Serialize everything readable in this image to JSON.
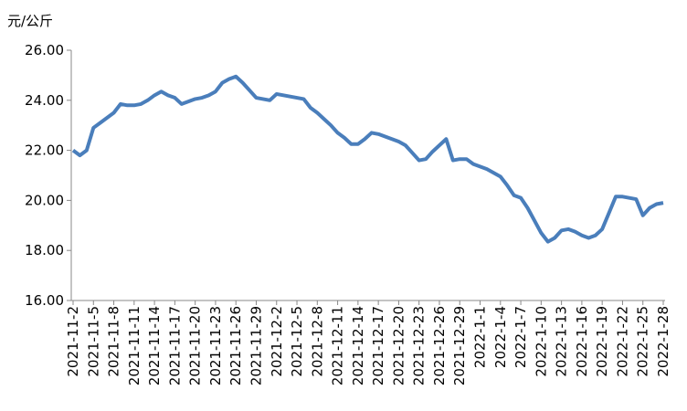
{
  "chart_data": {
    "type": "line",
    "y_label": "元/公斤",
    "categories": [
      "2021-11-2",
      null,
      null,
      "2021-11-5",
      null,
      null,
      "2021-11-8",
      null,
      null,
      "2021-11-11",
      null,
      null,
      "2021-11-14",
      null,
      null,
      "2021-11-17",
      null,
      null,
      "2021-11-20",
      null,
      null,
      "2021-11-23",
      null,
      null,
      "2021-11-26",
      null,
      null,
      "2021-11-29",
      null,
      null,
      "2021-12-2",
      null,
      null,
      "2021-12-5",
      null,
      null,
      "2021-12-8",
      null,
      null,
      "2021-12-11",
      null,
      null,
      "2021-12-14",
      null,
      null,
      "2021-12-17",
      null,
      null,
      "2021-12-20",
      null,
      null,
      "2021-12-23",
      null,
      null,
      "2021-12-26",
      null,
      null,
      "2021-12-29",
      null,
      null,
      "2022-1-1",
      null,
      null,
      "2022-1-4",
      null,
      null,
      "2022-1-7",
      null,
      null,
      "2022-1-10",
      null,
      null,
      "2022-1-13",
      null,
      null,
      "2022-1-16",
      null,
      null,
      "2022-1-19",
      null,
      null,
      "2022-1-22",
      null,
      null,
      "2022-1-25",
      null,
      null,
      "2022-1-28"
    ],
    "series": [
      {
        "color": "#4a7ebb",
        "values": [
          22.0,
          21.8,
          22.0,
          22.9,
          23.1,
          23.3,
          23.5,
          23.85,
          23.8,
          23.8,
          23.85,
          24.0,
          24.2,
          24.35,
          24.2,
          24.1,
          23.85,
          23.95,
          24.05,
          24.1,
          24.2,
          24.35,
          24.7,
          24.85,
          24.95,
          24.7,
          24.4,
          24.1,
          24.05,
          24.0,
          24.25,
          24.2,
          24.15,
          24.1,
          24.05,
          23.7,
          23.5,
          23.25,
          23.0,
          22.7,
          22.5,
          22.25,
          22.25,
          22.45,
          22.7,
          22.65,
          22.55,
          22.45,
          22.35,
          22.2,
          21.9,
          21.6,
          21.65,
          21.95,
          22.2,
          22.45,
          21.6,
          21.65,
          21.65,
          21.45,
          21.35,
          21.25,
          21.1,
          20.95,
          20.6,
          20.2,
          20.1,
          19.7,
          19.2,
          18.7,
          18.35,
          18.5,
          18.8,
          18.85,
          18.75,
          18.6,
          18.5,
          18.6,
          18.85,
          19.5,
          20.15,
          20.15,
          20.1,
          20.05,
          19.4,
          19.7,
          19.85,
          19.9
        ]
      }
    ],
    "ylim": [
      16,
      26
    ],
    "yticks": [
      {
        "value": 16,
        "label": "16.00"
      },
      {
        "value": 18,
        "label": "18.00"
      },
      {
        "value": 20,
        "label": "20.00"
      },
      {
        "value": 22,
        "label": "22.00"
      },
      {
        "value": 24,
        "label": "24.00"
      },
      {
        "value": 26,
        "label": "26.00"
      }
    ]
  }
}
